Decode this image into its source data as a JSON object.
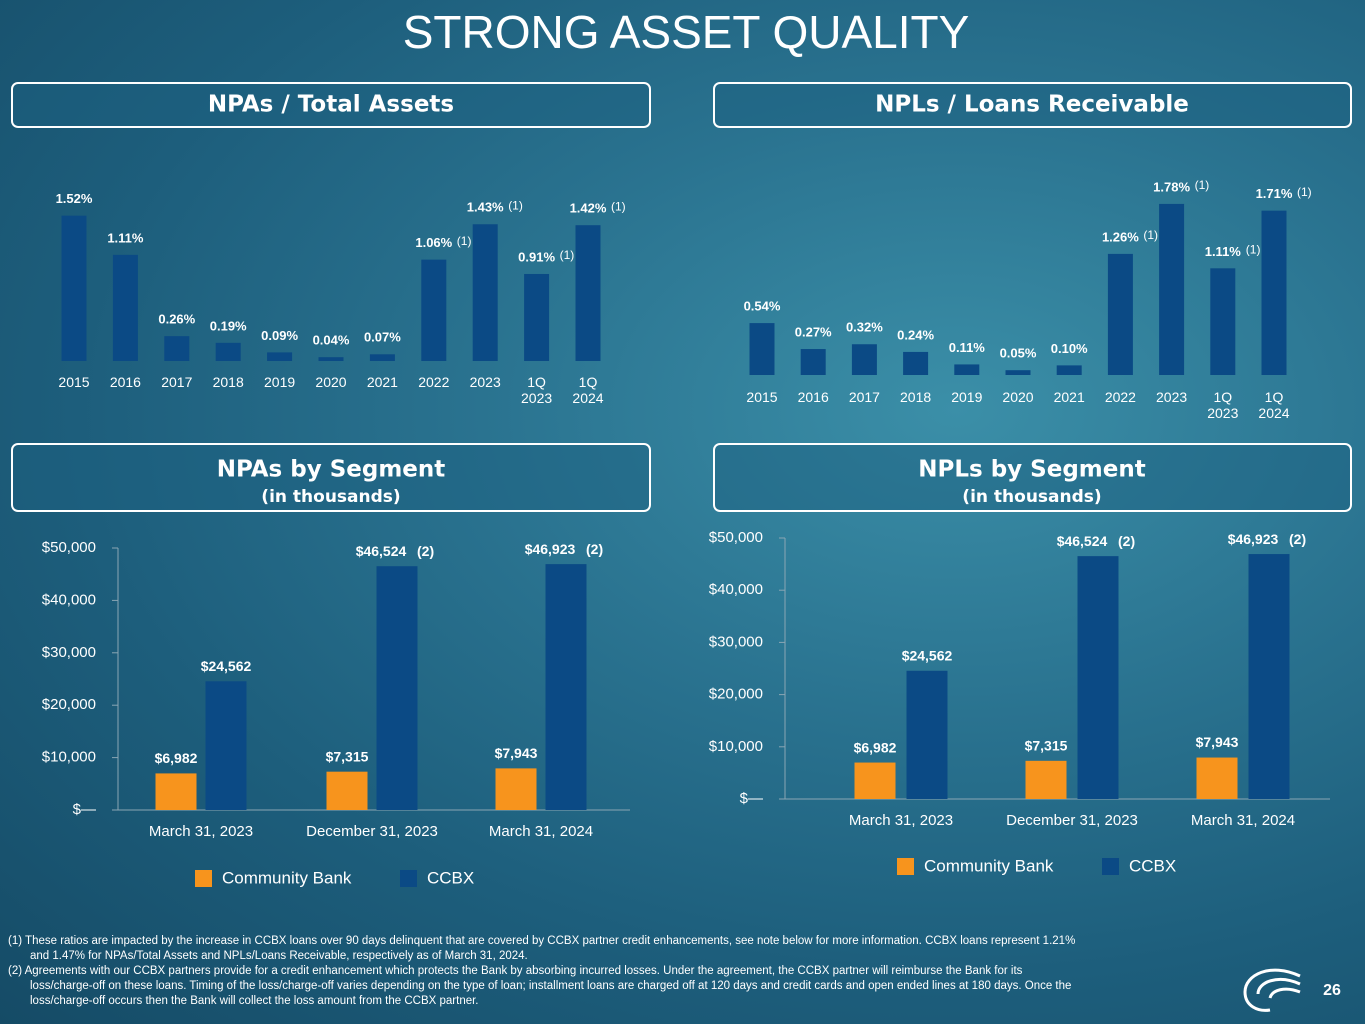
{
  "title": "STRONG ASSET QUALITY",
  "chart_data": [
    {
      "type": "bar",
      "title": "NPAs / Total Assets",
      "categories": [
        "2015",
        "2016",
        "2017",
        "2018",
        "2019",
        "2020",
        "2021",
        "2022",
        "2023",
        "1Q 2023",
        "1Q 2024"
      ],
      "values": [
        1.52,
        1.11,
        0.26,
        0.19,
        0.09,
        0.04,
        0.07,
        1.06,
        1.43,
        0.91,
        1.42
      ],
      "value_labels": [
        "1.52%",
        "1.11%",
        "0.26%",
        "0.19%",
        "0.09%",
        "0.04%",
        "0.07%",
        "1.06%",
        "1.43%",
        "0.91%",
        "1.42%"
      ],
      "annotations": [
        {
          "at": "2022",
          "text": "(1)"
        },
        {
          "at": "2023",
          "text": "(1)"
        },
        {
          "at": "1Q 2023",
          "text": "(1)"
        },
        {
          "at": "1Q 2024",
          "text": "(1)"
        }
      ],
      "color": "#0b4a85",
      "ylim": [
        0,
        1.6
      ]
    },
    {
      "type": "bar",
      "title": "NPLs / Loans Receivable",
      "categories": [
        "2015",
        "2016",
        "2017",
        "2018",
        "2019",
        "2020",
        "2021",
        "2022",
        "2023",
        "1Q 2023",
        "1Q 2024"
      ],
      "values": [
        0.54,
        0.27,
        0.32,
        0.24,
        0.11,
        0.05,
        0.1,
        1.26,
        1.78,
        1.11,
        1.71
      ],
      "value_labels": [
        "0.54%",
        "0.27%",
        "0.32%",
        "0.24%",
        "0.11%",
        "0.05%",
        "0.10%",
        "1.26%",
        "1.78%",
        "1.11%",
        "1.71%"
      ],
      "annotations": [
        {
          "at": "2022",
          "text": "(1)"
        },
        {
          "at": "2023",
          "text": "(1)"
        },
        {
          "at": "1Q 2023",
          "text": "(1)"
        },
        {
          "at": "1Q 2024",
          "text": "(1)"
        }
      ],
      "color": "#0b4a85",
      "ylim": [
        0,
        1.8
      ]
    },
    {
      "type": "bar",
      "title": "NPAs by Segment",
      "subtitle": "(in thousands)",
      "categories": [
        "March 31, 2023",
        "December 31, 2023",
        "March 31, 2024"
      ],
      "series": [
        {
          "name": "Community Bank",
          "color": "#f7941d",
          "values": [
            6982,
            7315,
            7943
          ],
          "value_labels": [
            "$6,982",
            "$7,315",
            "$7,943"
          ]
        },
        {
          "name": "CCBX",
          "color": "#0b4a85",
          "values": [
            24562,
            46524,
            46923
          ],
          "value_labels": [
            "$24,562",
            "$46,524",
            "$46,923"
          ]
        }
      ],
      "annotations": [
        {
          "at": "December 31, 2023",
          "series": "CCBX",
          "text": "(2)"
        },
        {
          "at": "March 31, 2024",
          "series": "CCBX",
          "text": "(2)"
        }
      ],
      "ylim": [
        0,
        50000
      ],
      "yticks": [
        {
          "value": 0,
          "label": "$—"
        },
        {
          "value": 10000,
          "label": "$10,000"
        },
        {
          "value": 20000,
          "label": "$20,000"
        },
        {
          "value": 30000,
          "label": "$30,000"
        },
        {
          "value": 40000,
          "label": "$40,000"
        },
        {
          "value": 50000,
          "label": "$50,000"
        }
      ],
      "legend": "bottom"
    },
    {
      "type": "bar",
      "title": "NPLs by Segment",
      "subtitle": "(in thousands)",
      "categories": [
        "March 31, 2023",
        "December 31, 2023",
        "March 31, 2024"
      ],
      "series": [
        {
          "name": "Community Bank",
          "color": "#f7941d",
          "values": [
            6982,
            7315,
            7943
          ],
          "value_labels": [
            "$6,982",
            "$7,315",
            "$7,943"
          ]
        },
        {
          "name": "CCBX",
          "color": "#0b4a85",
          "values": [
            24562,
            46524,
            46923
          ],
          "value_labels": [
            "$24,562",
            "$46,524",
            "$46,923"
          ]
        }
      ],
      "annotations": [
        {
          "at": "December 31, 2023",
          "series": "CCBX",
          "text": "(2)"
        },
        {
          "at": "March 31, 2024",
          "series": "CCBX",
          "text": "(2)"
        }
      ],
      "ylim": [
        0,
        50000
      ],
      "yticks": [
        {
          "value": 0,
          "label": "$—"
        },
        {
          "value": 10000,
          "label": "$10,000"
        },
        {
          "value": 20000,
          "label": "$20,000"
        },
        {
          "value": 30000,
          "label": "$30,000"
        },
        {
          "value": 40000,
          "label": "$40,000"
        },
        {
          "value": 50000,
          "label": "$50,000"
        }
      ],
      "legend": "bottom"
    }
  ],
  "footnotes": [
    "(1) These ratios are impacted by the increase in CCBX loans over 90 days delinquent that are covered by CCBX partner credit enhancements, see note below for more information. CCBX loans represent 1.21% and 1.47% for NPAs/Total Assets and NPLs/Loans Receivable, respectively as of March 31, 2024.",
    "(2) Agreements with our CCBX partners provide for a credit enhancement which protects the Bank by absorbing incurred losses. Under the agreement, the CCBX partner will reimburse the Bank for its loss/charge-off on these loans. Timing of the loss/charge-off varies depending on the type of loan; installment loans are charged off at 120 days and credit cards and open ended lines at 180 days. Once the loss/charge-off occurs then the Bank will collect the loss amount from the CCBX partner."
  ],
  "page_number": "26"
}
